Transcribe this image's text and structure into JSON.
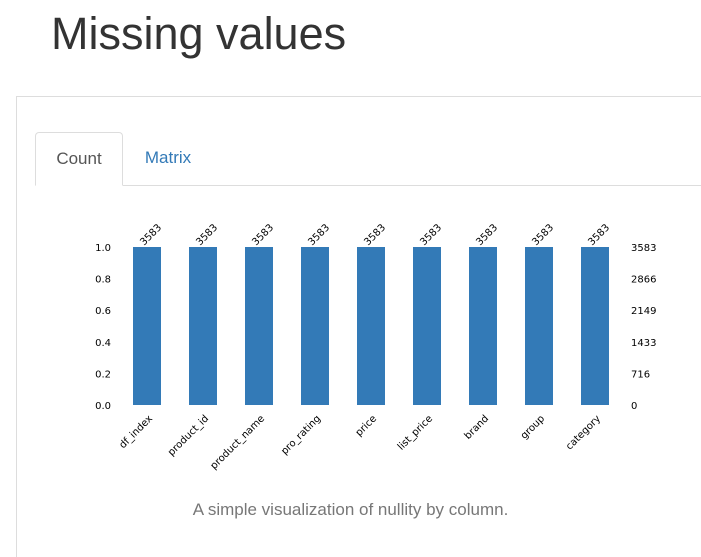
{
  "page": {
    "title": "Missing values",
    "tabs": [
      {
        "label": "Count",
        "active": true
      },
      {
        "label": "Matrix",
        "active": false
      }
    ],
    "caption": "A simple visualization of nullity by column."
  },
  "colors": {
    "bar": "#337ab7",
    "link": "#337ab7"
  },
  "chart_data": {
    "type": "bar",
    "categories": [
      "df_index",
      "product_id",
      "product_name",
      "pro_rating",
      "price",
      "list_price",
      "brand",
      "group",
      "category"
    ],
    "values": [
      1.0,
      1.0,
      1.0,
      1.0,
      1.0,
      1.0,
      1.0,
      1.0,
      1.0
    ],
    "counts": [
      "3583",
      "3583",
      "3583",
      "3583",
      "3583",
      "3583",
      "3583",
      "3583",
      "3583"
    ],
    "ylim": [
      0,
      1.0
    ],
    "yticks_left": [
      "0.0",
      "0.2",
      "0.4",
      "0.6",
      "0.8",
      "1.0"
    ],
    "yticks_right": [
      "0",
      "716",
      "1433",
      "2149",
      "2866",
      "3583"
    ],
    "grid": false
  }
}
